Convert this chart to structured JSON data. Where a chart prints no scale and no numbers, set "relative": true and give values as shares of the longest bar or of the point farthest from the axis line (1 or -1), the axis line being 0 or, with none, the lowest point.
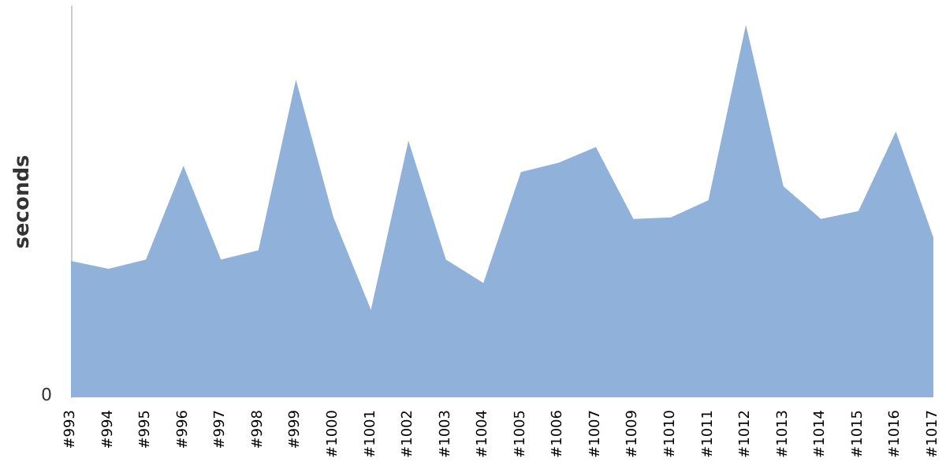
{
  "chart_data": {
    "type": "area",
    "ylabel": "seconds",
    "relative": true,
    "annotations": [
      "0"
    ],
    "categories": [
      "#993",
      "#994",
      "#995",
      "#996",
      "#997",
      "#998",
      "#999",
      "#1000",
      "#1001",
      "#1002",
      "#1003",
      "#1004",
      "#1005",
      "#1006",
      "#1007",
      "#1009",
      "#1010",
      "#1011",
      "#1012",
      "#1013",
      "#1014",
      "#1015",
      "#1016",
      "#1017"
    ],
    "series": [
      {
        "color": "#90b1da",
        "values": [
          0.366,
          0.345,
          0.37,
          0.622,
          0.37,
          0.395,
          0.853,
          0.483,
          0.235,
          0.689,
          0.37,
          0.307,
          0.605,
          0.63,
          0.672,
          0.479,
          0.483,
          0.529,
          1,
          0.567,
          0.479,
          0.5,
          0.714,
          0.429
        ]
      }
    ]
  }
}
